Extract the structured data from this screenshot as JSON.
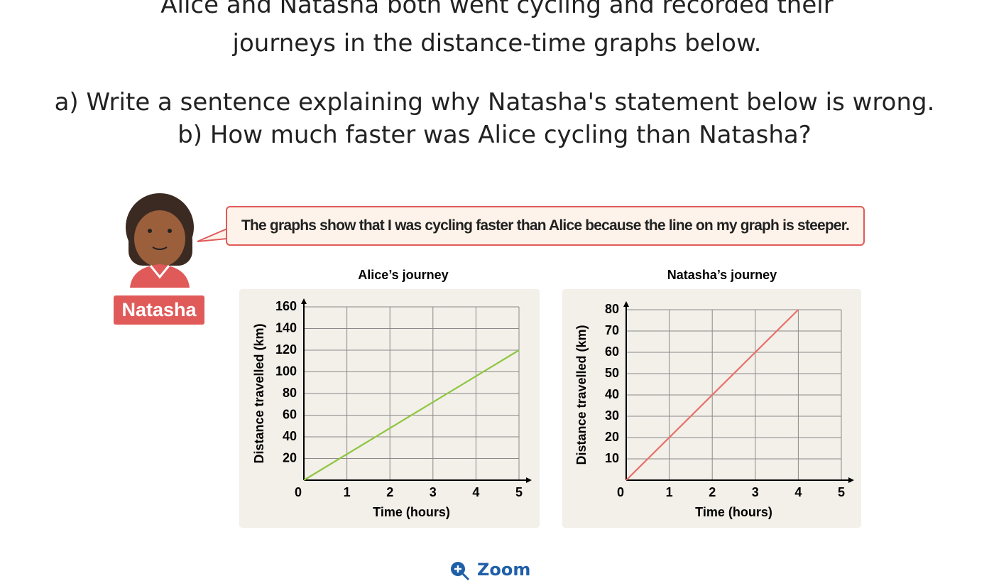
{
  "question": {
    "intro": "Alice and Natasha both went cycling and recorded their journeys in the distance-time graphs below.",
    "part_a": "a) Write a sentence explaining why Natasha's statement below is wrong.",
    "part_b": "b) How much faster was Alice cycling than Natasha?"
  },
  "speech": {
    "text": "The graphs show that I was cycling faster than  Alice because the line on my graph is steeper.",
    "speaker": "Natasha"
  },
  "chart_data": [
    {
      "type": "line",
      "title": "Alice’s journey",
      "x_label": "Time (hours)",
      "y_label": "Distance travelled (km)",
      "x": [
        0,
        5
      ],
      "series": [
        {
          "color": "#8dc63f",
          "values": [
            0,
            120
          ]
        }
      ],
      "xlim": [
        0,
        5
      ],
      "ylim": [
        0,
        160
      ],
      "xticks": [
        0,
        1,
        2,
        3,
        4,
        5
      ],
      "yticks": [
        20,
        40,
        60,
        80,
        100,
        120,
        140,
        160
      ],
      "grid": true
    },
    {
      "type": "line",
      "title": "Natasha’s journey",
      "x_label": "Time (hours)",
      "y_label": "Distance travelled (km)",
      "x": [
        0,
        4
      ],
      "series": [
        {
          "color": "#e8706a",
          "values": [
            0,
            80
          ]
        }
      ],
      "xlim": [
        0,
        5
      ],
      "ylim": [
        0,
        80
      ],
      "xticks": [
        0,
        1,
        2,
        3,
        4,
        5
      ],
      "yticks": [
        10,
        20,
        30,
        40,
        50,
        60,
        70,
        80
      ],
      "grid": true
    }
  ],
  "zoom": "Zoom"
}
